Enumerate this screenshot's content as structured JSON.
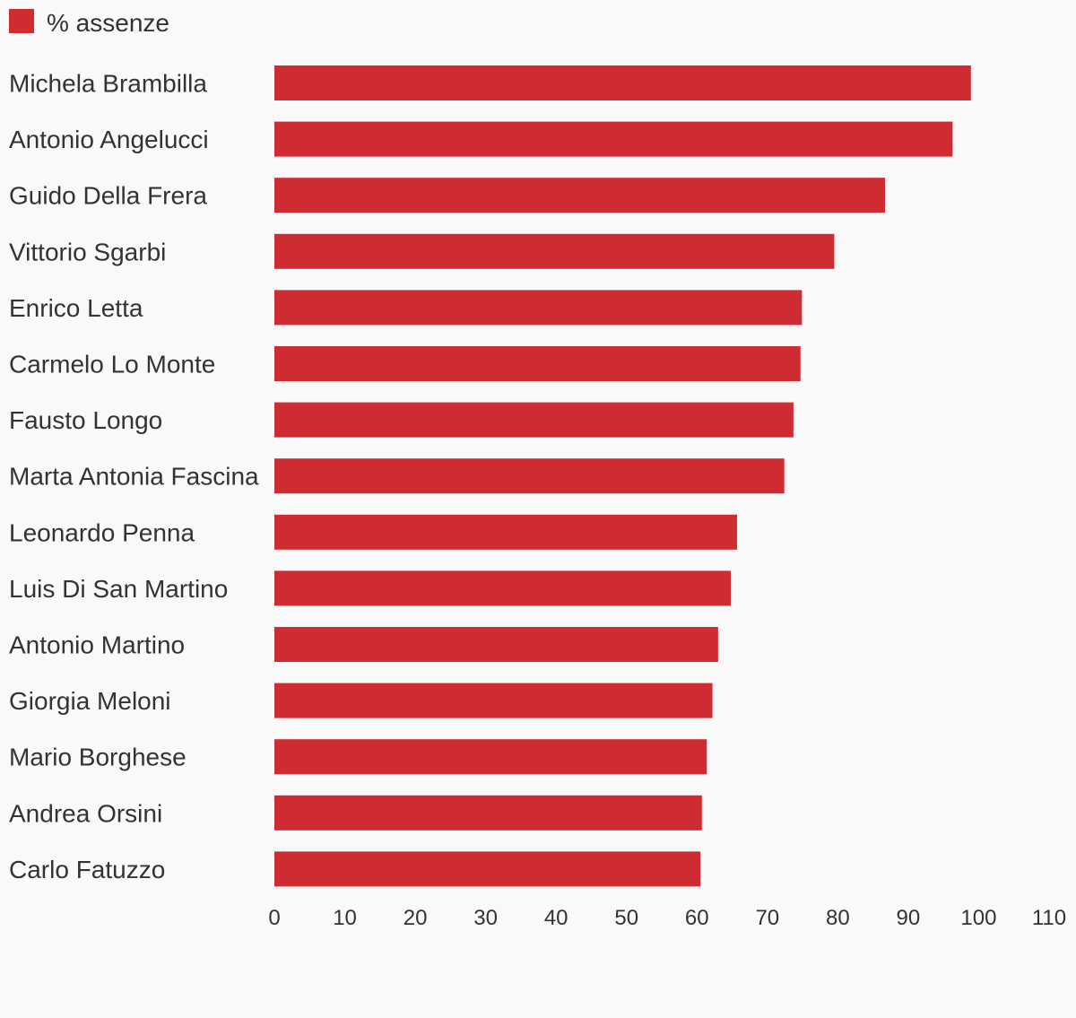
{
  "chart_data": {
    "type": "bar",
    "orientation": "horizontal",
    "categories": [
      "Michela Brambilla",
      "Antonio Angelucci",
      "Guido Della Frera",
      "Vittorio Sgarbi",
      "Enrico Letta",
      "Carmelo Lo Monte",
      "Fausto Longo",
      "Marta Antonia Fascina",
      "Leonardo Penna",
      "Luis Di San Martino",
      "Antonio Martino",
      "Giorgia Meloni",
      "Mario Borghese",
      "Andrea Orsini",
      "Carlo Fatuzzo"
    ],
    "series": [
      {
        "name": "% assenze",
        "color": "#cf2b33",
        "values": [
          98.9,
          96.3,
          86.7,
          79.5,
          74.9,
          74.7,
          73.7,
          72.4,
          65.7,
          64.8,
          63.0,
          62.2,
          61.4,
          60.7,
          60.5
        ]
      }
    ],
    "xlim": [
      0,
      110
    ],
    "xticks": [
      "0",
      "10",
      "20",
      "30",
      "40",
      "50",
      "60",
      "70",
      "80",
      "90",
      "100",
      "110"
    ],
    "legend": "top-left",
    "grid": false
  }
}
